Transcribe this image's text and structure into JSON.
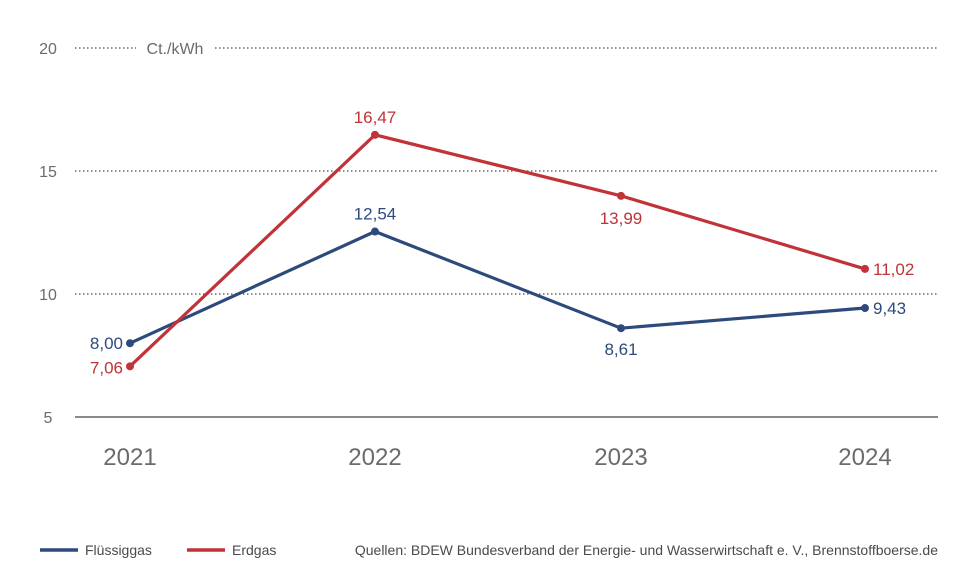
{
  "chart_data": {
    "type": "line",
    "unit_label": "Ct./kWh",
    "categories": [
      "2021",
      "2022",
      "2023",
      "2024"
    ],
    "ylim": [
      5,
      20
    ],
    "yticks": [
      "5",
      "10",
      "15",
      "20"
    ],
    "grid": true,
    "legend_position": "bottom-left",
    "series": [
      {
        "name": "Flüssiggas",
        "color": "#2d4a7c",
        "values": [
          8.0,
          12.54,
          8.61,
          9.43
        ],
        "labels": [
          "8,00",
          "12,54",
          "8,61",
          "9,43"
        ]
      },
      {
        "name": "Erdgas",
        "color": "#bf3339",
        "values": [
          7.06,
          16.47,
          13.99,
          11.02
        ],
        "labels": [
          "7,06",
          "16,47",
          "13,99",
          "11,02"
        ]
      }
    ],
    "source": "Quellen: BDEW Bundesverband der Energie- und Wasserwirtschaft e. V., Brennstoffboerse.de"
  }
}
